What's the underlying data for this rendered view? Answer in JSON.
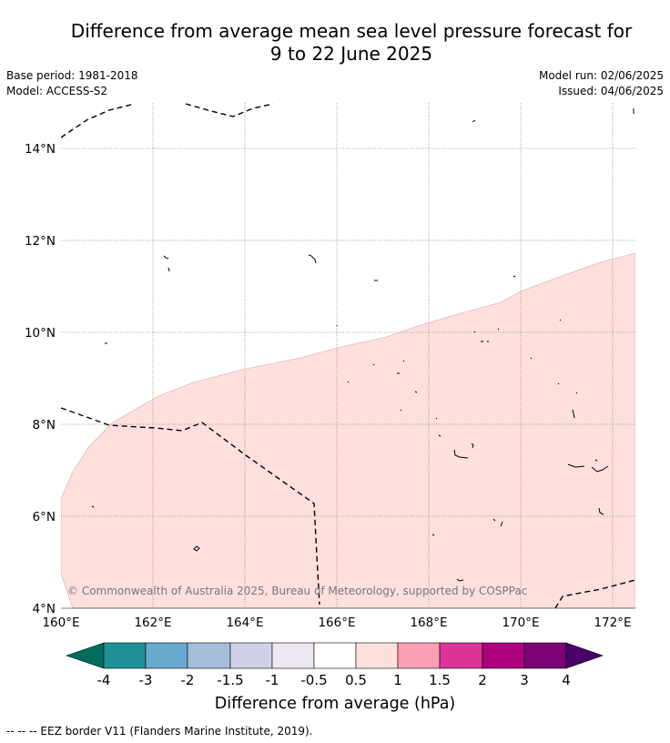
{
  "title_line1": "Difference from average mean sea level pressure forecast for",
  "title_line2": "9 to 22 June 2025",
  "base_period": "Base period: 1981-2018",
  "model": "Model: ACCESS-S2",
  "model_run": "Model run: 02/06/2025",
  "issued": "Issued: 04/06/2025",
  "copyright": "© Commonwealth of Australia 2025, Bureau of Meteorology, supported by COSPPac",
  "footer_legend": "--  --  -- EEZ border V11 (Flanders Marine Institute, 2019).",
  "map": {
    "lon_labels": [
      "160°E",
      "162°E",
      "164°E",
      "166°E",
      "168°E",
      "170°E",
      "172°E"
    ],
    "lat_labels": [
      "4°N",
      "6°N",
      "8°N",
      "10°N",
      "12°N",
      "14°N"
    ],
    "anomaly_region_category": "0.5 to 1",
    "anomaly_fill": "#fde0dd",
    "eez_line_color": "#000000"
  },
  "colorbar": {
    "title": "Difference from average (hPa)",
    "labels": [
      "-4",
      "-3",
      "-2",
      "-1.5",
      "-1",
      "-0.5",
      "0.5",
      "1",
      "1.5",
      "2",
      "3",
      "4"
    ],
    "colors": [
      "#006d5e",
      "#1f9196",
      "#67a9cf",
      "#a6bddb",
      "#d0d1e6",
      "#ece7f2",
      "#ffffff",
      "#fde0dd",
      "#fa9fb5",
      "#dd3497",
      "#ae017e",
      "#7a0177",
      "#49006a"
    ]
  }
}
